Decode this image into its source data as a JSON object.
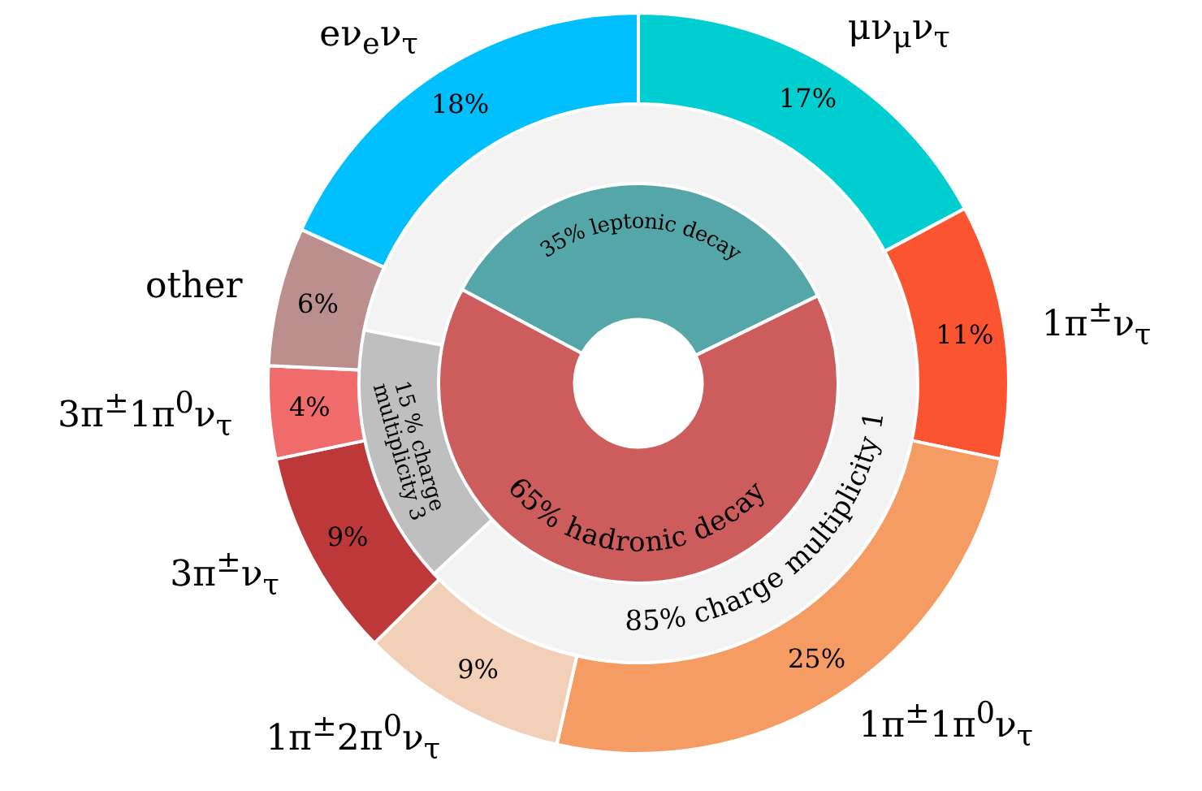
{
  "chart_data": [
    {
      "type": "donut",
      "categories": [
        "μν$_{μ}$ν$_{τ}$",
        "1π$^{±}$ν$_{τ}$",
        "1π$^{±}$1π$^{0}$ν$_{τ}$",
        "1π$^{±}$2π$^{0}$ν$_{τ}$",
        "3π$^{±}$ν$_{τ}$",
        "3π$^{±}$1π$^{0}$ν$_{τ}$",
        "other",
        "eν$_{e}$ν$_{τ}$"
      ],
      "values": [
        17,
        11,
        25,
        9,
        9,
        4,
        6,
        18
      ],
      "colors": [
        "#00ced1",
        "#fa5530",
        "#f49c64",
        "#f2d0b8",
        "#bd3838",
        "#f06b6b",
        "#bc8f8f",
        "#00bfff"
      ],
      "value_labels": [
        "17%",
        "11%",
        "25%",
        "9%",
        "9%",
        "4%",
        "6%",
        "18%"
      ]
    },
    {
      "type": "donut",
      "categories": [
        "85% charge multiplicity 1",
        "15 % charge multiplicity 3"
      ],
      "values": [
        85,
        15
      ],
      "colors": [
        "#f3f3f3",
        "#bfbfbf"
      ]
    },
    {
      "type": "donut",
      "categories": [
        "35% leptonic decay",
        "65% hadronic decay"
      ],
      "values": [
        35,
        65
      ],
      "colors": [
        "#55a6a8",
        "#cd5c5c"
      ]
    }
  ]
}
